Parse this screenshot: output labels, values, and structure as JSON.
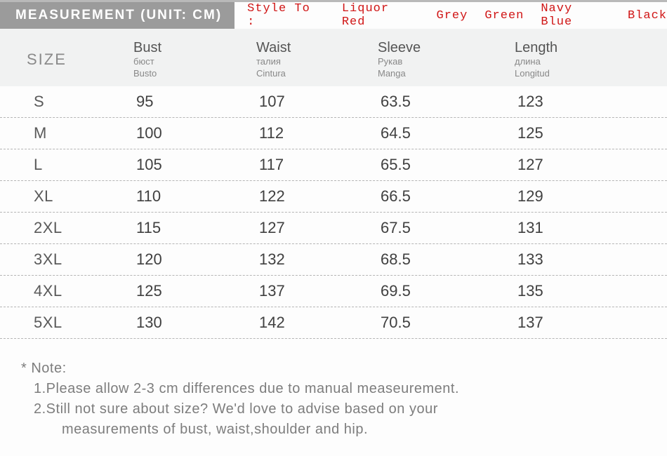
{
  "header": {
    "title": "MEASUREMENT (UNIT: CM)",
    "style_lead": "Style To :",
    "style_options": [
      "Liquor Red",
      "Grey",
      "Green",
      "Navy Blue",
      "Black"
    ],
    "title_bg": "#9b9b9b",
    "title_color": "#ffffff",
    "style_color": "#d01515"
  },
  "table": {
    "background_header": "#f1f2f2",
    "border_color": "#b5b5b5",
    "size_label": "SIZE",
    "columns": [
      {
        "main": "Bust",
        "sub1": "бюст",
        "sub2": "Busto"
      },
      {
        "main": "Waist",
        "sub1": "талия",
        "sub2": "Cintura"
      },
      {
        "main": "Sleeve",
        "sub1": "Рукав",
        "sub2": "Manga"
      },
      {
        "main": "Length",
        "sub1": "длина",
        "sub2": "Longitud"
      }
    ],
    "rows": [
      {
        "size": "S",
        "v": [
          "95",
          "107",
          "63.5",
          "123"
        ]
      },
      {
        "size": "M",
        "v": [
          "100",
          "112",
          "64.5",
          "125"
        ]
      },
      {
        "size": "L",
        "v": [
          "105",
          "117",
          "65.5",
          "127"
        ]
      },
      {
        "size": "XL",
        "v": [
          "110",
          "122",
          "66.5",
          "129"
        ]
      },
      {
        "size": "2XL",
        "v": [
          "115",
          "127",
          "67.5",
          "131"
        ]
      },
      {
        "size": "3XL",
        "v": [
          "120",
          "132",
          "68.5",
          "133"
        ]
      },
      {
        "size": "4XL",
        "v": [
          "125",
          "137",
          "69.5",
          "135"
        ]
      },
      {
        "size": "5XL",
        "v": [
          "130",
          "142",
          "70.5",
          "137"
        ]
      }
    ]
  },
  "note": {
    "heading": "* Note:",
    "line1": "1.Please allow 2-3 cm differences due to manual measeurement.",
    "line2a": "2.Still not sure about size? We'd love to advise based on your",
    "line2b": "measurements of bust, waist,shoulder and hip."
  }
}
